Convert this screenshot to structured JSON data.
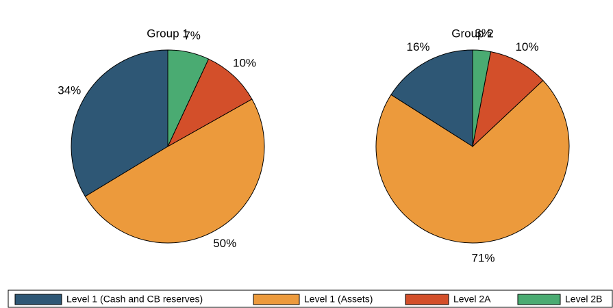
{
  "chart_data": [
    {
      "type": "pie",
      "title": "Group 1",
      "categories": [
        "Level 1 (Cash and CB reserves)",
        "Level 1 (Assets)",
        "Level 2A",
        "Level 2B"
      ],
      "values": [
        34,
        50,
        10,
        7
      ],
      "value_labels": [
        "34%",
        "50%",
        "10%",
        "7%"
      ],
      "colors": [
        "#2e5775",
        "#ec9a3c",
        "#d34f2a",
        "#4aab72"
      ],
      "startangle": 90,
      "counterclock": true
    },
    {
      "type": "pie",
      "title": "Group 2",
      "categories": [
        "Level 1 (Cash and CB reserves)",
        "Level 1 (Assets)",
        "Level 2A",
        "Level 2B"
      ],
      "values": [
        16,
        71,
        10,
        3
      ],
      "value_labels": [
        "16%",
        "71%",
        "10%",
        "3%"
      ],
      "colors": [
        "#2e5775",
        "#ec9a3c",
        "#d34f2a",
        "#4aab72"
      ],
      "startangle": 90,
      "counterclock": true
    }
  ]
}
